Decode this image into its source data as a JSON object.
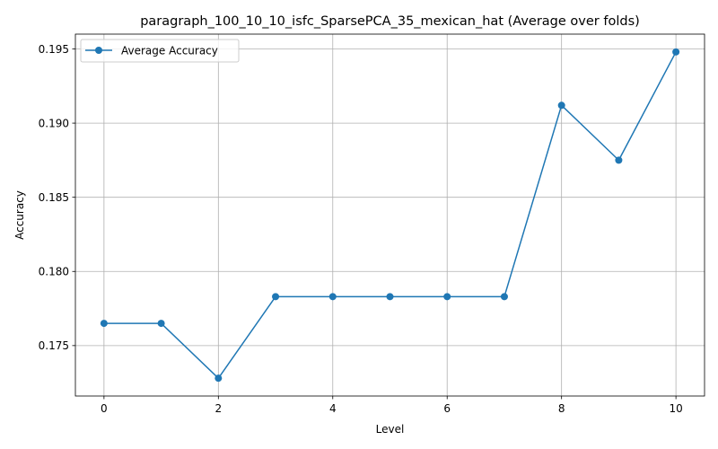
{
  "chart_data": {
    "type": "line",
    "title": "paragraph_100_10_10_isfc_SparsePCA_35_mexican_hat (Average over folds)",
    "xlabel": "Level",
    "ylabel": "Accuracy",
    "xlim": [
      -0.5,
      10.5
    ],
    "ylim": [
      0.1716,
      0.196
    ],
    "xticks": [
      0,
      2,
      4,
      6,
      8,
      10
    ],
    "xtick_labels": [
      "0",
      "2",
      "4",
      "6",
      "8",
      "10"
    ],
    "yticks": [
      0.175,
      0.18,
      0.185,
      0.19,
      0.195
    ],
    "ytick_labels": [
      "0.175",
      "0.180",
      "0.185",
      "0.190",
      "0.195"
    ],
    "grid": true,
    "legend_position": "top-left",
    "series": [
      {
        "name": "Average Accuracy",
        "color": "#1f77b4",
        "marker": "circle",
        "x": [
          0,
          1,
          2,
          3,
          4,
          5,
          6,
          7,
          8,
          9,
          10
        ],
        "values": [
          0.1765,
          0.1765,
          0.1728,
          0.1783,
          0.1783,
          0.1783,
          0.1783,
          0.1783,
          0.1912,
          0.1875,
          0.1948
        ]
      }
    ]
  }
}
